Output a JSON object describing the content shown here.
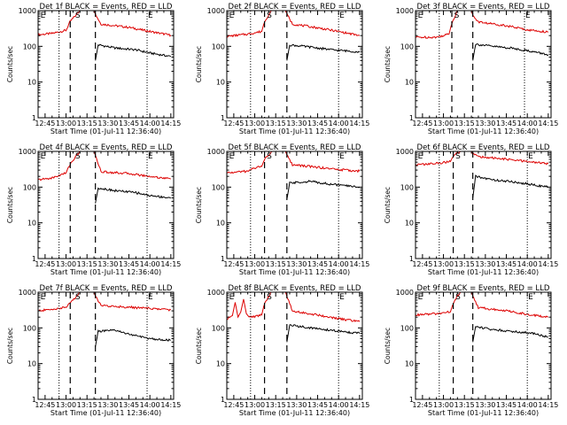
{
  "chart_data": [
    {
      "type": "line",
      "title": "Det 1f BLACK = Events, RED = LLD",
      "xlabel": "Start Time (01-Jul-11 12:36:40)",
      "ylabel": "Counts/sec",
      "y_scale": "log",
      "ylim": [
        1,
        1000
      ],
      "xlim": [
        "12:40",
        "14:17"
      ],
      "x_ticks": [
        "12:45",
        "13:00",
        "13:15",
        "13:30",
        "13:45",
        "14:00",
        "14:15"
      ],
      "y_ticks": [
        "1",
        "10",
        "100",
        "1000"
      ],
      "dotted_lines": [
        "12:55",
        "13:58"
      ],
      "dashed_lines": [
        "13:03",
        "13:21"
      ],
      "markers": [
        {
          "text": "E",
          "x": "12:41"
        },
        {
          "text": "S",
          "x": "13:06"
        },
        {
          "text": "E",
          "x": "13:58"
        }
      ],
      "series": [
        {
          "name": "LLD",
          "color": "#dd0000",
          "x": [
            "12:40",
            "12:50",
            "13:00",
            "13:03",
            "13:10",
            "13:20",
            "13:21",
            "13:25",
            "13:45",
            "14:00",
            "14:15"
          ],
          "values": [
            210,
            230,
            280,
            500,
            1000,
            1000,
            800,
            420,
            340,
            260,
            205
          ]
        },
        {
          "name": "Events",
          "color": "#000000",
          "x": [
            "13:21",
            "13:23",
            "13:35",
            "13:50",
            "14:00",
            "14:15"
          ],
          "values": [
            40,
            110,
            90,
            80,
            65,
            52
          ]
        }
      ]
    },
    {
      "type": "line",
      "title": "Det 2f BLACK = Events, RED = LLD",
      "xlabel": "Start Time (01-Jul-11 12:36:40)",
      "ylabel": "Counts/sec",
      "y_scale": "log",
      "ylim": [
        1,
        1000
      ],
      "xlim": [
        "12:40",
        "14:17"
      ],
      "x_ticks": [
        "12:45",
        "13:00",
        "13:15",
        "13:30",
        "13:45",
        "14:00",
        "14:15"
      ],
      "y_ticks": [
        "1",
        "10",
        "100",
        "1000"
      ],
      "dotted_lines": [
        "12:57",
        "14:00"
      ],
      "dashed_lines": [
        "13:07",
        "13:23"
      ],
      "markers": [
        {
          "text": "E",
          "x": "12:41"
        },
        {
          "text": "S",
          "x": "13:08"
        },
        {
          "text": "E",
          "x": "14:00"
        }
      ],
      "series": [
        {
          "name": "LLD",
          "color": "#dd0000",
          "x": [
            "12:40",
            "12:55",
            "13:05",
            "13:07",
            "13:12",
            "13:22",
            "13:23",
            "13:27",
            "13:45",
            "14:00",
            "14:15"
          ],
          "values": [
            190,
            220,
            260,
            500,
            1000,
            1000,
            800,
            420,
            330,
            260,
            200
          ]
        },
        {
          "name": "Events",
          "color": "#000000",
          "x": [
            "13:23",
            "13:25",
            "13:40",
            "13:55",
            "14:15"
          ],
          "values": [
            40,
            110,
            95,
            80,
            70
          ]
        }
      ]
    },
    {
      "type": "line",
      "title": "Det 3f BLACK = Events, RED = LLD",
      "xlabel": "Start Time (01-Jul-11 12:36:40)",
      "ylabel": "Counts/sec",
      "y_scale": "log",
      "ylim": [
        1,
        1000
      ],
      "xlim": [
        "12:40",
        "14:17"
      ],
      "x_ticks": [
        "12:45",
        "13:00",
        "13:15",
        "13:30",
        "13:45",
        "14:00",
        "14:15"
      ],
      "y_ticks": [
        "1",
        "10",
        "100",
        "1000"
      ],
      "dotted_lines": [
        "12:57",
        "13:58"
      ],
      "dashed_lines": [
        "13:06",
        "13:21"
      ],
      "markers": [
        {
          "text": "E",
          "x": "12:41"
        },
        {
          "text": "S",
          "x": "13:07"
        },
        {
          "text": "E",
          "x": "13:58"
        }
      ],
      "series": [
        {
          "name": "LLD",
          "color": "#dd0000",
          "x": [
            "12:40",
            "12:55",
            "13:04",
            "13:06",
            "13:10",
            "13:20",
            "13:21",
            "13:25",
            "13:45",
            "14:00",
            "14:15"
          ],
          "values": [
            180,
            180,
            220,
            450,
            1000,
            1000,
            750,
            480,
            380,
            290,
            250
          ]
        },
        {
          "name": "Events",
          "color": "#000000",
          "x": [
            "13:21",
            "13:23",
            "13:35",
            "13:50",
            "14:05",
            "14:15"
          ],
          "values": [
            40,
            115,
            100,
            88,
            70,
            58
          ]
        }
      ]
    },
    {
      "type": "line",
      "title": "Det 4f BLACK = Events, RED = LLD",
      "xlabel": "Start Time (01-Jul-11 12:36:40)",
      "ylabel": "Counts/sec",
      "y_scale": "log",
      "ylim": [
        1,
        1000
      ],
      "xlim": [
        "12:40",
        "14:17"
      ],
      "x_ticks": [
        "12:45",
        "13:00",
        "13:15",
        "13:30",
        "13:45",
        "14:00",
        "14:15"
      ],
      "y_ticks": [
        "1",
        "10",
        "100",
        "1000"
      ],
      "dotted_lines": [
        "12:55",
        "13:58"
      ],
      "dashed_lines": [
        "13:03",
        "13:21"
      ],
      "markers": [
        {
          "text": "E",
          "x": "12:41"
        },
        {
          "text": "S",
          "x": "13:06"
        },
        {
          "text": "E",
          "x": "13:58"
        }
      ],
      "series": [
        {
          "name": "LLD",
          "color": "#dd0000",
          "x": [
            "12:40",
            "12:50",
            "13:00",
            "13:03",
            "13:10",
            "13:20",
            "13:21",
            "13:25",
            "13:45",
            "14:00",
            "14:15"
          ],
          "values": [
            160,
            180,
            250,
            450,
            1000,
            1000,
            800,
            270,
            240,
            200,
            170
          ]
        },
        {
          "name": "Events",
          "color": "#000000",
          "x": [
            "13:21",
            "13:23",
            "13:35",
            "13:50",
            "14:00",
            "14:15"
          ],
          "values": [
            35,
            95,
            80,
            70,
            58,
            50
          ]
        }
      ]
    },
    {
      "type": "line",
      "title": "Det 5f BLACK = Events, RED = LLD",
      "xlabel": "Start Time (01-Jul-11 12:36:40)",
      "ylabel": "Counts/sec",
      "y_scale": "log",
      "ylim": [
        1,
        1000
      ],
      "xlim": [
        "12:40",
        "14:17"
      ],
      "x_ticks": [
        "12:45",
        "13:00",
        "13:15",
        "13:30",
        "13:45",
        "14:00",
        "14:15"
      ],
      "y_ticks": [
        "1",
        "10",
        "100",
        "1000"
      ],
      "dotted_lines": [
        "12:57",
        "14:00"
      ],
      "dashed_lines": [
        "13:07",
        "13:23"
      ],
      "markers": [
        {
          "text": "E",
          "x": "12:41"
        },
        {
          "text": "S",
          "x": "13:08"
        },
        {
          "text": "E",
          "x": "14:00"
        }
      ],
      "series": [
        {
          "name": "LLD",
          "color": "#dd0000",
          "x": [
            "12:40",
            "12:55",
            "13:00",
            "13:05",
            "13:07",
            "13:12",
            "13:22",
            "13:23",
            "13:27",
            "13:45",
            "14:00",
            "14:15"
          ],
          "values": [
            250,
            280,
            350,
            380,
            600,
            1000,
            1000,
            800,
            420,
            360,
            310,
            280
          ]
        },
        {
          "name": "Events",
          "color": "#000000",
          "x": [
            "13:23",
            "13:25",
            "13:40",
            "13:55",
            "14:15"
          ],
          "values": [
            45,
            130,
            145,
            120,
            100
          ]
        }
      ]
    },
    {
      "type": "line",
      "title": "Det 6f BLACK = Events, RED = LLD",
      "xlabel": "Start Time (01-Jul-11 12:36:40)",
      "ylabel": "Counts/sec",
      "y_scale": "log",
      "ylim": [
        1,
        1000
      ],
      "xlim": [
        "12:40",
        "14:17"
      ],
      "x_ticks": [
        "12:45",
        "13:00",
        "13:15",
        "13:30",
        "13:45",
        "14:00",
        "14:15"
      ],
      "y_ticks": [
        "1",
        "10",
        "100",
        "1000"
      ],
      "dotted_lines": [
        "12:57",
        "14:00"
      ],
      "dashed_lines": [
        "13:07",
        "13:21"
      ],
      "markers": [
        {
          "text": "E",
          "x": "12:41"
        },
        {
          "text": "S",
          "x": "13:08"
        },
        {
          "text": "E",
          "x": "14:00"
        }
      ],
      "series": [
        {
          "name": "LLD",
          "color": "#dd0000",
          "x": [
            "12:40",
            "12:55",
            "13:05",
            "13:07",
            "13:12",
            "13:20",
            "13:21",
            "13:25",
            "13:45",
            "14:00",
            "14:15"
          ],
          "values": [
            420,
            460,
            520,
            750,
            1000,
            1000,
            850,
            720,
            600,
            520,
            450
          ]
        },
        {
          "name": "Events",
          "color": "#000000",
          "x": [
            "13:21",
            "13:23",
            "13:35",
            "13:50",
            "14:05",
            "14:15"
          ],
          "values": [
            50,
            200,
            160,
            140,
            115,
            100
          ]
        }
      ]
    },
    {
      "type": "line",
      "title": "Det 7f BLACK = Events, RED = LLD",
      "xlabel": "Start Time (01-Jul-11 12:36:40)",
      "ylabel": "Counts/sec",
      "y_scale": "log",
      "ylim": [
        1,
        1000
      ],
      "xlim": [
        "12:40",
        "14:17"
      ],
      "x_ticks": [
        "12:45",
        "13:00",
        "13:15",
        "13:30",
        "13:45",
        "14:00",
        "14:15"
      ],
      "y_ticks": [
        "1",
        "10",
        "100",
        "1000"
      ],
      "dotted_lines": [
        "12:55",
        "13:58"
      ],
      "dashed_lines": [
        "13:03",
        "13:21"
      ],
      "markers": [
        {
          "text": "E",
          "x": "12:41"
        },
        {
          "text": "S",
          "x": "13:06"
        },
        {
          "text": "E",
          "x": "13:58"
        }
      ],
      "series": [
        {
          "name": "LLD",
          "color": "#dd0000",
          "x": [
            "12:40",
            "12:50",
            "13:00",
            "13:03",
            "13:10",
            "13:20",
            "13:21",
            "13:25",
            "13:45",
            "14:00",
            "14:15"
          ],
          "values": [
            300,
            330,
            380,
            500,
            1000,
            1000,
            800,
            420,
            380,
            350,
            320
          ]
        },
        {
          "name": "Events",
          "color": "#000000",
          "x": [
            "13:21",
            "13:23",
            "13:35",
            "13:50",
            "14:00",
            "14:15"
          ],
          "values": [
            30,
            80,
            85,
            60,
            50,
            45
          ]
        }
      ]
    },
    {
      "type": "line",
      "title": "Det 8f BLACK = Events, RED = LLD",
      "xlabel": "Start Time (01-Jul-11 12:36:40)",
      "ylabel": "Counts/sec",
      "y_scale": "log",
      "ylim": [
        1,
        1000
      ],
      "xlim": [
        "12:40",
        "14:17"
      ],
      "x_ticks": [
        "12:45",
        "13:00",
        "13:15",
        "13:30",
        "13:45",
        "14:00",
        "14:15"
      ],
      "y_ticks": [
        "1",
        "10",
        "100",
        "1000"
      ],
      "dotted_lines": [
        "12:57",
        "14:00"
      ],
      "dashed_lines": [
        "13:07",
        "13:23"
      ],
      "markers": [
        {
          "text": "E",
          "x": "12:41"
        },
        {
          "text": "S",
          "x": "13:08"
        },
        {
          "text": "E",
          "x": "14:00"
        }
      ],
      "series": [
        {
          "name": "LLD",
          "color": "#dd0000",
          "x": [
            "12:40",
            "12:44",
            "12:46",
            "12:48",
            "12:50",
            "12:52",
            "12:54",
            "12:56",
            "13:00",
            "13:05",
            "13:07",
            "13:12",
            "13:22",
            "13:23",
            "13:27",
            "13:45",
            "14:00",
            "14:15"
          ],
          "values": [
            180,
            220,
            520,
            200,
            280,
            640,
            250,
            200,
            210,
            230,
            500,
            1000,
            1000,
            800,
            300,
            230,
            180,
            150
          ]
        },
        {
          "name": "Events",
          "color": "#000000",
          "x": [
            "13:23",
            "13:25",
            "13:40",
            "13:55",
            "14:15"
          ],
          "values": [
            40,
            120,
            100,
            85,
            70
          ]
        }
      ]
    },
    {
      "type": "line",
      "title": "Det 9f BLACK = Events, RED = LLD",
      "xlabel": "Start Time (01-Jul-11 12:36:40)",
      "ylabel": "Counts/sec",
      "y_scale": "log",
      "ylim": [
        1,
        1000
      ],
      "xlim": [
        "12:40",
        "14:17"
      ],
      "x_ticks": [
        "12:45",
        "13:00",
        "13:15",
        "13:30",
        "13:45",
        "14:00",
        "14:15"
      ],
      "y_ticks": [
        "1",
        "10",
        "100",
        "1000"
      ],
      "dotted_lines": [
        "12:57",
        "14:00"
      ],
      "dashed_lines": [
        "13:07",
        "13:21"
      ],
      "markers": [
        {
          "text": "E",
          "x": "12:41"
        },
        {
          "text": "S",
          "x": "13:08"
        },
        {
          "text": "E",
          "x": "14:00"
        }
      ],
      "series": [
        {
          "name": "LLD",
          "color": "#dd0000",
          "x": [
            "12:40",
            "12:55",
            "13:05",
            "13:07",
            "13:12",
            "13:20",
            "13:21",
            "13:25",
            "13:45",
            "14:00",
            "14:15"
          ],
          "values": [
            230,
            250,
            280,
            500,
            1000,
            1000,
            800,
            370,
            300,
            240,
            200
          ]
        },
        {
          "name": "Events",
          "color": "#000000",
          "x": [
            "13:21",
            "13:23",
            "13:35",
            "13:50",
            "14:05",
            "14:15"
          ],
          "values": [
            40,
            110,
            90,
            80,
            70,
            55
          ]
        }
      ]
    }
  ]
}
